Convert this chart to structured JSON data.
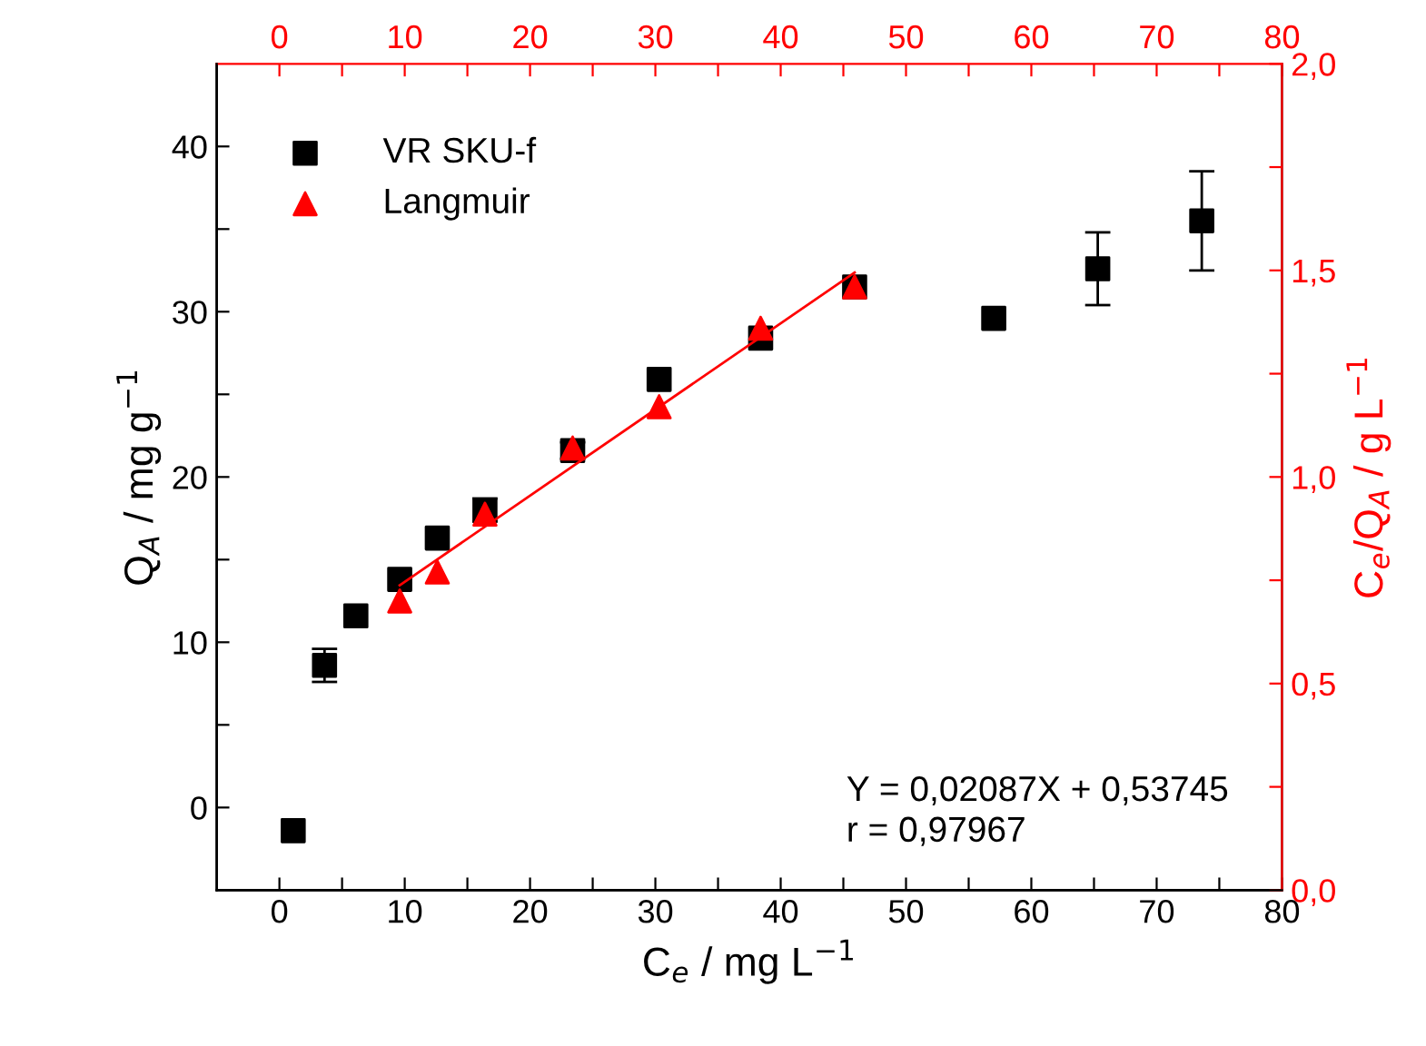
{
  "chart_data": {
    "type": "scatter",
    "xlabel": "C$_{e}$ / mg L$^{−1}$",
    "ylabel": "Q$_{A}$ / mg g$^{−1}$",
    "y2label": "C$_{e}$/Q$_{A}$ / g L$^{−1}$",
    "xlim": [
      -5,
      80
    ],
    "xticks": [
      0,
      {
        "value": 5,
        "label": null
      },
      10,
      {
        "value": 15,
        "label": null
      },
      20,
      {
        "value": 25,
        "label": null
      },
      30,
      {
        "value": 35,
        "label": null
      },
      40,
      {
        "value": 45,
        "label": null
      },
      50,
      {
        "value": 55,
        "label": null
      },
      60,
      {
        "value": 65,
        "label": null
      },
      70,
      {
        "value": 75,
        "label": null
      },
      80
    ],
    "x2lim": [
      -5,
      80
    ],
    "x2ticks": [
      0,
      {
        "value": 5,
        "label": null
      },
      10,
      {
        "value": 15,
        "label": null
      },
      20,
      {
        "value": 25,
        "label": null
      },
      30,
      {
        "value": 35,
        "label": null
      },
      40,
      {
        "value": 45,
        "label": null
      },
      50,
      {
        "value": 55,
        "label": null
      },
      60,
      {
        "value": 65,
        "label": null
      },
      70,
      {
        "value": 75,
        "label": null
      },
      80
    ],
    "ylim": [
      -5,
      45
    ],
    "yticks": [
      0,
      {
        "value": 5,
        "label": null
      },
      10,
      {
        "value": 15,
        "label": null
      },
      20,
      {
        "value": 25,
        "label": null
      },
      30,
      {
        "value": 35,
        "label": null
      },
      40
    ],
    "y2lim": [
      0,
      2
    ],
    "y2ticks": [
      {
        "value": 0,
        "label": "0,0"
      },
      {
        "value": 0.25,
        "label": null
      },
      {
        "value": 0.5,
        "label": "0,5"
      },
      {
        "value": 0.75,
        "label": null
      },
      {
        "value": 1,
        "label": "1,0"
      },
      {
        "value": 1.25,
        "label": null
      },
      {
        "value": 1.5,
        "label": "1,5"
      },
      {
        "value": 1.75,
        "label": null
      },
      {
        "value": 2,
        "label": "2,0"
      }
    ],
    "legend": "top left",
    "grid": false,
    "series": [
      {
        "name": "VR SKU-f",
        "marker": "square",
        "color": "#000000",
        "x": [
          1.1,
          3.6,
          6.1,
          9.6,
          12.6,
          16.4,
          23.4,
          30.3,
          38.4,
          45.9,
          57.0,
          65.3,
          73.6
        ],
        "values": [
          -1.4,
          8.6,
          11.6,
          13.8,
          16.3,
          18.0,
          21.6,
          25.9,
          28.4,
          31.5,
          29.6,
          32.6,
          35.5
        ],
        "errors": [
          null,
          1.0,
          null,
          null,
          null,
          0.7,
          0.5,
          null,
          null,
          null,
          null,
          2.2,
          3.0
        ]
      },
      {
        "name": "Langmuir",
        "marker": "triangle",
        "axis": "y2",
        "color": "#ff0000",
        "x": [
          9.6,
          12.6,
          16.4,
          23.4,
          30.3,
          38.4,
          45.9
        ],
        "values": [
          0.7,
          0.77,
          0.91,
          1.07,
          1.17,
          1.36,
          1.46
        ]
      },
      {
        "type": "line",
        "axis": "y2",
        "color": "#ff0000",
        "marker": "none",
        "x": [
          9.6,
          45.9
        ],
        "values": [
          0.738,
          1.495
        ]
      }
    ],
    "annotations": [
      "Y = 0,02087X + 0,53745\nr = 0,97967"
    ]
  }
}
